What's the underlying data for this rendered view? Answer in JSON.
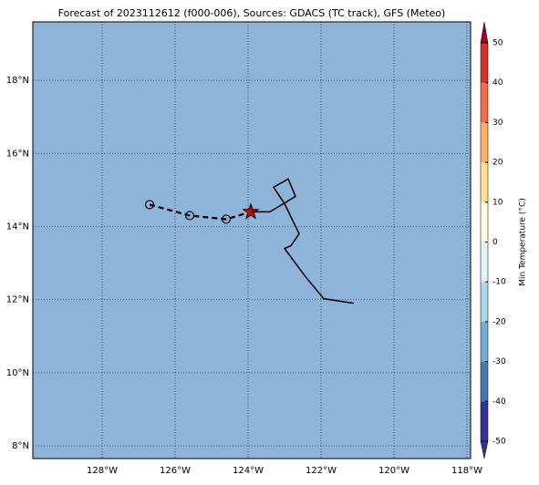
{
  "chart_data": {
    "type": "map",
    "title": "Forecast of 2023112612 (f000-006), Sources: GDACS (TC track), GFS (Meteo)",
    "xlim": [
      -129.9,
      -117.9
    ],
    "ylim": [
      7.65,
      19.6
    ],
    "xticks": [
      {
        "value": -128,
        "label": "128°W"
      },
      {
        "value": -126,
        "label": "126°W"
      },
      {
        "value": -124,
        "label": "124°W"
      },
      {
        "value": -122,
        "label": "122°W"
      },
      {
        "value": -120,
        "label": "120°W"
      },
      {
        "value": -118,
        "label": "118°W"
      }
    ],
    "yticks": [
      {
        "value": 8,
        "label": "8°N"
      },
      {
        "value": 10,
        "label": "10°N"
      },
      {
        "value": 12,
        "label": "12°N"
      },
      {
        "value": 14,
        "label": "14°N"
      },
      {
        "value": 16,
        "label": "16°N"
      },
      {
        "value": 18,
        "label": "18°N"
      }
    ],
    "grid": true,
    "field_color": "#8fb4d9",
    "colorbar": {
      "label": "Min Temperature (°C)",
      "lim": [
        -50,
        50
      ],
      "ticks": [
        -50,
        -40,
        -30,
        -20,
        -10,
        0,
        10,
        20,
        30,
        40,
        50
      ],
      "colors": [
        "#313695",
        "#4575b4",
        "#74add1",
        "#abd9e9",
        "#e0f3f8",
        "#fffbe0",
        "#fee090",
        "#fdae61",
        "#f46d43",
        "#d73027",
        "#a50026"
      ]
    },
    "series": [
      {
        "name": "track",
        "color": "#000000",
        "lon": [
          -126.7,
          -125.6,
          -124.6,
          -123.925
        ],
        "lat": [
          14.6,
          14.3,
          14.2,
          14.4
        ]
      },
      {
        "name": "outline",
        "color": "#000000",
        "lon": [
          -123.925,
          -123.4,
          -122.7,
          -122.9,
          -123.3,
          -123.0,
          -122.6,
          -122.825,
          -123.0,
          -122.425,
          -121.925,
          -121.1
        ],
        "lat": [
          14.4,
          14.4,
          14.825,
          15.3,
          15.075,
          14.625,
          13.8,
          13.475,
          13.4,
          12.625,
          12.025,
          11.9
        ]
      }
    ]
  }
}
